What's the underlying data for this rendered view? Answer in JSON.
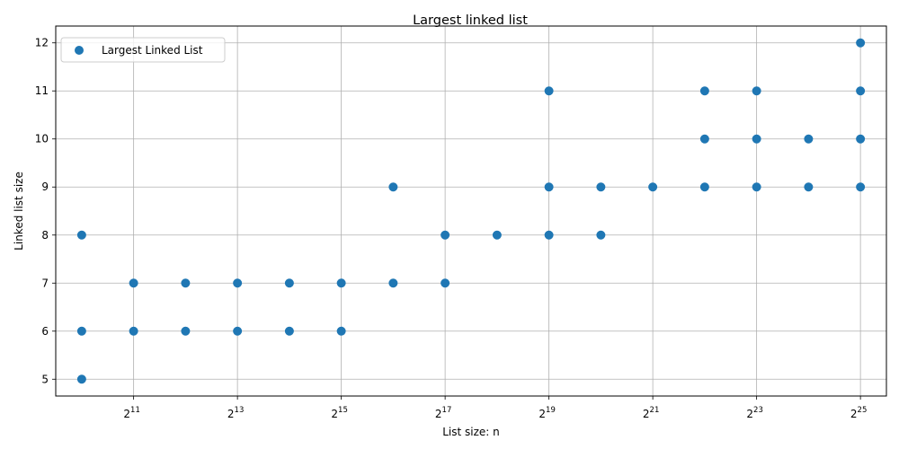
{
  "chart_data": {
    "type": "scatter",
    "title": "Largest linked list",
    "xlabel": "List size: n",
    "ylabel": "Linked list size",
    "x_scale": "log2",
    "x_tick_base": "2",
    "x_ticks": [
      {
        "label": "11",
        "value": 2048
      },
      {
        "label": "13",
        "value": 8192
      },
      {
        "label": "15",
        "value": 32768
      },
      {
        "label": "17",
        "value": 131072
      },
      {
        "label": "19",
        "value": 524288
      },
      {
        "label": "21",
        "value": 2097152
      },
      {
        "label": "23",
        "value": 8388608
      },
      {
        "label": "25",
        "value": 33554432
      }
    ],
    "y_ticks": [
      "5",
      "6",
      "7",
      "8",
      "9",
      "10",
      "11",
      "12"
    ],
    "xlim": [
      724,
      47453133
    ],
    "ylim": [
      4.65,
      12.35
    ],
    "grid": true,
    "legend_position": "top-left",
    "series": [
      {
        "name": "Largest Linked List",
        "color": "#1f77b4",
        "points": [
          [
            1024,
            5
          ],
          [
            1024,
            6
          ],
          [
            1024,
            8
          ],
          [
            2048,
            6
          ],
          [
            2048,
            7
          ],
          [
            4096,
            6
          ],
          [
            4096,
            7
          ],
          [
            8192,
            6
          ],
          [
            8192,
            7
          ],
          [
            16384,
            6
          ],
          [
            16384,
            7
          ],
          [
            32768,
            6
          ],
          [
            32768,
            7
          ],
          [
            65536,
            7
          ],
          [
            65536,
            9
          ],
          [
            131072,
            7
          ],
          [
            131072,
            8
          ],
          [
            262144,
            8
          ],
          [
            524288,
            8
          ],
          [
            524288,
            9
          ],
          [
            524288,
            11
          ],
          [
            1048576,
            8
          ],
          [
            1048576,
            9
          ],
          [
            2097152,
            9
          ],
          [
            4194304,
            9
          ],
          [
            4194304,
            10
          ],
          [
            4194304,
            11
          ],
          [
            8388608,
            9
          ],
          [
            8388608,
            10
          ],
          [
            8388608,
            11
          ],
          [
            16777216,
            9
          ],
          [
            16777216,
            10
          ],
          [
            33554432,
            9
          ],
          [
            33554432,
            10
          ],
          [
            33554432,
            11
          ],
          [
            33554432,
            12
          ]
        ]
      }
    ]
  }
}
